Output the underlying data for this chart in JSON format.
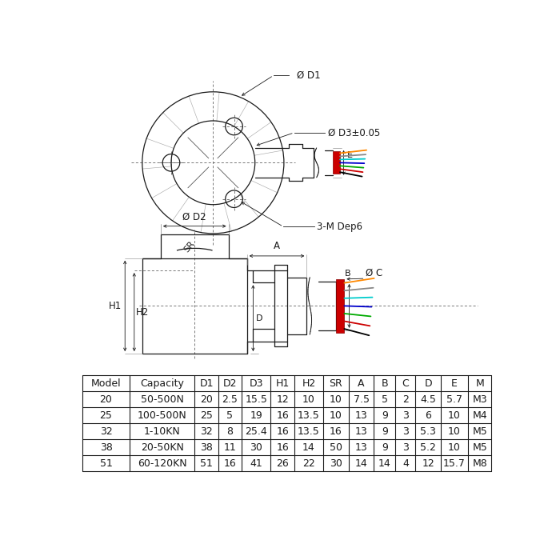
{
  "bg_color": "#ffffff",
  "line_color": "#1a1a1a",
  "font_size_table": 9,
  "label_D1": "Ø D1",
  "label_D3": "Ø D3±0.05",
  "label_D2": "Ø D2",
  "label_3M": "3-M Dep6",
  "label_A": "A",
  "label_B": "B",
  "label_C": "Ø C",
  "label_D": "D",
  "label_E": "E",
  "label_H1": "H1",
  "label_H2": "H2",
  "label_SR": "SR",
  "table_headers": [
    "Model",
    "Capacity",
    "D1",
    "D2",
    "D3",
    "H1",
    "H2",
    "SR",
    "A",
    "B",
    "C",
    "D",
    "E",
    "M"
  ],
  "table_rows": [
    [
      "20",
      "50-500N",
      "20",
      "2.5",
      "15.5",
      "12",
      "10",
      "10",
      "7.5",
      "5",
      "2",
      "4.5",
      "5.7",
      "M3"
    ],
    [
      "25",
      "100-500N",
      "25",
      "5",
      "19",
      "16",
      "13.5",
      "10",
      "13",
      "9",
      "3",
      "6",
      "10",
      "M4"
    ],
    [
      "32",
      "1-10KN",
      "32",
      "8",
      "25.4",
      "16",
      "13.5",
      "16",
      "13",
      "9",
      "3",
      "5.3",
      "10",
      "M5"
    ],
    [
      "38",
      "20-50KN",
      "38",
      "11",
      "30",
      "16",
      "14",
      "50",
      "13",
      "9",
      "3",
      "5.2",
      "10",
      "M5"
    ],
    [
      "51",
      "60-120KN",
      "51",
      "16",
      "41",
      "26",
      "22",
      "30",
      "14",
      "14",
      "4",
      "12",
      "15.7",
      "M8"
    ]
  ],
  "wire_colors": [
    "#000000",
    "#cc0000",
    "#00aa00",
    "#0000cc",
    "#00cccc",
    "#888888",
    "#ff8800"
  ],
  "red_connector": "#cc0000"
}
